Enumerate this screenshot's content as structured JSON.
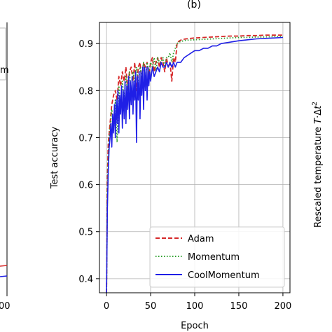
{
  "figure": {
    "panel_label": "(b)",
    "left_panel_fragments": {
      "legend_partial_text": "m",
      "x_tick_fragment": "00"
    },
    "right_panel_label": "Rescaled temperature T·Δt²",
    "right_panel_label_parts": {
      "main": "Rescaled temperature",
      "T": "T",
      "dot": "·Δ",
      "t": "t",
      "sup": "2"
    }
  },
  "chart_data": {
    "type": "line",
    "title": "(b)",
    "xlabel": "Epoch",
    "ylabel": "Test accuracy",
    "xlim": [
      -8,
      208
    ],
    "ylim": [
      0.37,
      0.945
    ],
    "xticks": [
      0,
      50,
      100,
      150,
      200
    ],
    "yticks": [
      0.4,
      0.5,
      0.6,
      0.7,
      0.8,
      0.9
    ],
    "grid": true,
    "legend_position": "lower-right",
    "series": [
      {
        "name": "Adam",
        "color": "#d62728",
        "style": "dashed",
        "x": [
          0,
          1,
          2,
          3,
          4,
          5,
          6,
          8,
          10,
          12,
          14,
          16,
          18,
          20,
          22,
          24,
          26,
          28,
          30,
          32,
          34,
          36,
          38,
          40,
          42,
          44,
          46,
          48,
          50,
          52,
          54,
          56,
          58,
          60,
          62,
          64,
          66,
          68,
          70,
          72,
          74,
          76,
          78,
          80,
          82,
          85,
          90,
          100,
          110,
          120,
          130,
          140,
          150,
          160,
          170,
          180,
          190,
          200
        ],
        "y": [
          0.37,
          0.61,
          0.69,
          0.71,
          0.73,
          0.75,
          0.77,
          0.79,
          0.8,
          0.78,
          0.83,
          0.81,
          0.84,
          0.82,
          0.85,
          0.8,
          0.84,
          0.85,
          0.82,
          0.86,
          0.8,
          0.85,
          0.86,
          0.82,
          0.86,
          0.85,
          0.86,
          0.83,
          0.86,
          0.87,
          0.84,
          0.86,
          0.87,
          0.85,
          0.87,
          0.86,
          0.84,
          0.87,
          0.85,
          0.86,
          0.82,
          0.87,
          0.86,
          0.9,
          0.905,
          0.908,
          0.91,
          0.912,
          0.913,
          0.914,
          0.915,
          0.916,
          0.916,
          0.917,
          0.917,
          0.918,
          0.918,
          0.918
        ]
      },
      {
        "name": "Momentum",
        "color": "#2ca02c",
        "style": "dotted",
        "x": [
          0,
          1,
          2,
          3,
          4,
          5,
          6,
          8,
          10,
          12,
          14,
          16,
          18,
          20,
          22,
          24,
          26,
          28,
          30,
          32,
          34,
          36,
          38,
          40,
          42,
          44,
          46,
          48,
          50,
          52,
          54,
          56,
          58,
          60,
          62,
          64,
          66,
          68,
          70,
          72,
          74,
          76,
          78,
          80,
          82,
          85,
          90,
          100,
          110,
          120,
          130,
          140,
          150,
          160,
          170,
          180,
          190,
          200
        ],
        "y": [
          0.37,
          0.58,
          0.66,
          0.7,
          0.72,
          0.74,
          0.76,
          0.72,
          0.78,
          0.69,
          0.81,
          0.76,
          0.82,
          0.78,
          0.83,
          0.8,
          0.84,
          0.79,
          0.84,
          0.82,
          0.85,
          0.81,
          0.85,
          0.83,
          0.86,
          0.82,
          0.86,
          0.84,
          0.86,
          0.85,
          0.87,
          0.84,
          0.87,
          0.86,
          0.86,
          0.87,
          0.85,
          0.87,
          0.87,
          0.88,
          0.86,
          0.88,
          0.89,
          0.9,
          0.903,
          0.905,
          0.907,
          0.908,
          0.909,
          0.91,
          0.911,
          0.912,
          0.913,
          0.913,
          0.914,
          0.914,
          0.915,
          0.915
        ]
      },
      {
        "name": "CoolMomentum",
        "color": "#1f1fe6",
        "style": "solid",
        "x": [
          0,
          1,
          2,
          3,
          4,
          5,
          6,
          7,
          8,
          9,
          10,
          11,
          12,
          13,
          14,
          15,
          16,
          17,
          18,
          19,
          20,
          21,
          22,
          23,
          24,
          25,
          26,
          27,
          28,
          29,
          30,
          31,
          32,
          33,
          34,
          35,
          36,
          37,
          38,
          39,
          40,
          41,
          42,
          43,
          44,
          45,
          46,
          47,
          48,
          49,
          50,
          52,
          54,
          56,
          58,
          60,
          62,
          64,
          66,
          68,
          70,
          72,
          74,
          76,
          78,
          80,
          84,
          88,
          92,
          96,
          100,
          105,
          110,
          115,
          120,
          125,
          130,
          140,
          150,
          160,
          170,
          180,
          190,
          200
        ],
        "y": [
          0.37,
          0.55,
          0.63,
          0.68,
          0.7,
          0.73,
          0.68,
          0.75,
          0.71,
          0.77,
          0.7,
          0.78,
          0.73,
          0.8,
          0.71,
          0.79,
          0.75,
          0.81,
          0.72,
          0.8,
          0.74,
          0.82,
          0.73,
          0.81,
          0.76,
          0.83,
          0.74,
          0.82,
          0.77,
          0.83,
          0.75,
          0.82,
          0.78,
          0.84,
          0.69,
          0.83,
          0.78,
          0.84,
          0.74,
          0.84,
          0.79,
          0.85,
          0.76,
          0.85,
          0.8,
          0.85,
          0.78,
          0.85,
          0.81,
          0.84,
          0.82,
          0.85,
          0.83,
          0.84,
          0.85,
          0.84,
          0.86,
          0.85,
          0.85,
          0.86,
          0.85,
          0.86,
          0.85,
          0.86,
          0.85,
          0.86,
          0.86,
          0.87,
          0.875,
          0.88,
          0.885,
          0.885,
          0.89,
          0.89,
          0.895,
          0.895,
          0.9,
          0.903,
          0.906,
          0.908,
          0.91,
          0.911,
          0.912,
          0.913
        ]
      }
    ]
  }
}
